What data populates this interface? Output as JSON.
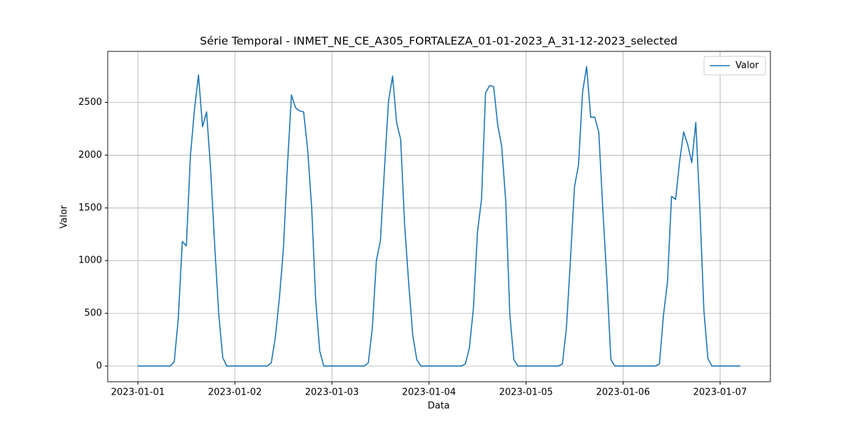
{
  "chart_data": {
    "type": "line",
    "title": "Série Temporal - INMET_NE_CE_A305_FORTALEZA_01-01-2023_A_31-12-2023_selected",
    "x_label": "Data",
    "y_label": "Valor",
    "x": [
      "2023-01-01 00:00",
      "2023-01-01 01:00",
      "2023-01-01 02:00",
      "2023-01-01 03:00",
      "2023-01-01 04:00",
      "2023-01-01 05:00",
      "2023-01-01 06:00",
      "2023-01-01 07:00",
      "2023-01-01 08:00",
      "2023-01-01 09:00",
      "2023-01-01 10:00",
      "2023-01-01 11:00",
      "2023-01-01 12:00",
      "2023-01-01 13:00",
      "2023-01-01 14:00",
      "2023-01-01 15:00",
      "2023-01-01 16:00",
      "2023-01-01 17:00",
      "2023-01-01 18:00",
      "2023-01-01 19:00",
      "2023-01-01 20:00",
      "2023-01-01 21:00",
      "2023-01-01 22:00",
      "2023-01-01 23:00",
      "2023-01-02 00:00",
      "2023-01-02 01:00",
      "2023-01-02 02:00",
      "2023-01-02 03:00",
      "2023-01-02 04:00",
      "2023-01-02 05:00",
      "2023-01-02 06:00",
      "2023-01-02 07:00",
      "2023-01-02 08:00",
      "2023-01-02 09:00",
      "2023-01-02 10:00",
      "2023-01-02 11:00",
      "2023-01-02 12:00",
      "2023-01-02 13:00",
      "2023-01-02 14:00",
      "2023-01-02 15:00",
      "2023-01-02 16:00",
      "2023-01-02 17:00",
      "2023-01-02 18:00",
      "2023-01-02 19:00",
      "2023-01-02 20:00",
      "2023-01-02 21:00",
      "2023-01-02 22:00",
      "2023-01-02 23:00",
      "2023-01-03 00:00",
      "2023-01-03 01:00",
      "2023-01-03 02:00",
      "2023-01-03 03:00",
      "2023-01-03 04:00",
      "2023-01-03 05:00",
      "2023-01-03 06:00",
      "2023-01-03 07:00",
      "2023-01-03 08:00",
      "2023-01-03 09:00",
      "2023-01-03 10:00",
      "2023-01-03 11:00",
      "2023-01-03 12:00",
      "2023-01-03 13:00",
      "2023-01-03 14:00",
      "2023-01-03 15:00",
      "2023-01-03 16:00",
      "2023-01-03 17:00",
      "2023-01-03 18:00",
      "2023-01-03 19:00",
      "2023-01-03 20:00",
      "2023-01-03 21:00",
      "2023-01-03 22:00",
      "2023-01-03 23:00",
      "2023-01-04 00:00",
      "2023-01-04 01:00",
      "2023-01-04 02:00",
      "2023-01-04 03:00",
      "2023-01-04 04:00",
      "2023-01-04 05:00",
      "2023-01-04 06:00",
      "2023-01-04 07:00",
      "2023-01-04 08:00",
      "2023-01-04 09:00",
      "2023-01-04 10:00",
      "2023-01-04 11:00",
      "2023-01-04 12:00",
      "2023-01-04 13:00",
      "2023-01-04 14:00",
      "2023-01-04 15:00",
      "2023-01-04 16:00",
      "2023-01-04 17:00",
      "2023-01-04 18:00",
      "2023-01-04 19:00",
      "2023-01-04 20:00",
      "2023-01-04 21:00",
      "2023-01-04 22:00",
      "2023-01-04 23:00",
      "2023-01-05 00:00",
      "2023-01-05 01:00",
      "2023-01-05 02:00",
      "2023-01-05 03:00",
      "2023-01-05 04:00",
      "2023-01-05 05:00",
      "2023-01-05 06:00",
      "2023-01-05 07:00",
      "2023-01-05 08:00",
      "2023-01-05 09:00",
      "2023-01-05 10:00",
      "2023-01-05 11:00",
      "2023-01-05 12:00",
      "2023-01-05 13:00",
      "2023-01-05 14:00",
      "2023-01-05 15:00",
      "2023-01-05 16:00",
      "2023-01-05 17:00",
      "2023-01-05 18:00",
      "2023-01-05 19:00",
      "2023-01-05 20:00",
      "2023-01-05 21:00",
      "2023-01-05 22:00",
      "2023-01-05 23:00",
      "2023-01-06 00:00",
      "2023-01-06 01:00",
      "2023-01-06 02:00",
      "2023-01-06 03:00",
      "2023-01-06 04:00",
      "2023-01-06 05:00",
      "2023-01-06 06:00",
      "2023-01-06 07:00",
      "2023-01-06 08:00",
      "2023-01-06 09:00",
      "2023-01-06 10:00",
      "2023-01-06 11:00",
      "2023-01-06 12:00",
      "2023-01-06 13:00",
      "2023-01-06 14:00",
      "2023-01-06 15:00",
      "2023-01-06 16:00",
      "2023-01-06 17:00",
      "2023-01-06 18:00",
      "2023-01-06 19:00",
      "2023-01-06 20:00",
      "2023-01-06 21:00",
      "2023-01-06 22:00",
      "2023-01-06 23:00",
      "2023-01-07 00:00",
      "2023-01-07 01:00",
      "2023-01-07 02:00",
      "2023-01-07 03:00",
      "2023-01-07 04:00",
      "2023-01-07 05:00"
    ],
    "series": [
      {
        "name": "Valor",
        "color": "#1f77b4",
        "values": [
          0,
          0,
          0,
          0,
          0,
          0,
          0,
          0,
          0,
          40,
          450,
          1180,
          1140,
          1990,
          2430,
          2760,
          2270,
          2410,
          1870,
          1150,
          500,
          80,
          0,
          0,
          0,
          0,
          0,
          0,
          0,
          0,
          0,
          0,
          0,
          30,
          270,
          640,
          1110,
          1900,
          2570,
          2450,
          2420,
          2410,
          2050,
          1500,
          620,
          140,
          0,
          0,
          0,
          0,
          0,
          0,
          0,
          0,
          0,
          0,
          0,
          30,
          360,
          1000,
          1190,
          1870,
          2510,
          2750,
          2310,
          2150,
          1330,
          780,
          290,
          60,
          0,
          0,
          0,
          0,
          0,
          0,
          0,
          0,
          0,
          0,
          0,
          20,
          170,
          550,
          1270,
          1580,
          2590,
          2660,
          2650,
          2290,
          2080,
          1560,
          490,
          60,
          0,
          0,
          0,
          0,
          0,
          0,
          0,
          0,
          0,
          0,
          0,
          20,
          360,
          1010,
          1700,
          1910,
          2600,
          2840,
          2360,
          2360,
          2220,
          1490,
          820,
          60,
          0,
          0,
          0,
          0,
          0,
          0,
          0,
          0,
          0,
          0,
          0,
          20,
          480,
          800,
          1610,
          1580,
          1940,
          2220,
          2100,
          1930,
          2310,
          1500,
          530,
          70,
          0,
          0,
          0,
          0,
          0,
          0,
          0,
          0
        ]
      }
    ],
    "xlim": [
      "2022-12-31 16:33",
      "2023-01-07 12:27"
    ],
    "xticks": [
      "2023-01-01",
      "2023-01-02",
      "2023-01-03",
      "2023-01-04",
      "2023-01-05",
      "2023-01-06",
      "2023-01-07"
    ],
    "ylim": [
      -149,
      2984
    ],
    "yticks": [
      0,
      500,
      1000,
      1500,
      2000,
      2500
    ],
    "grid": true,
    "legend": "upper right"
  }
}
